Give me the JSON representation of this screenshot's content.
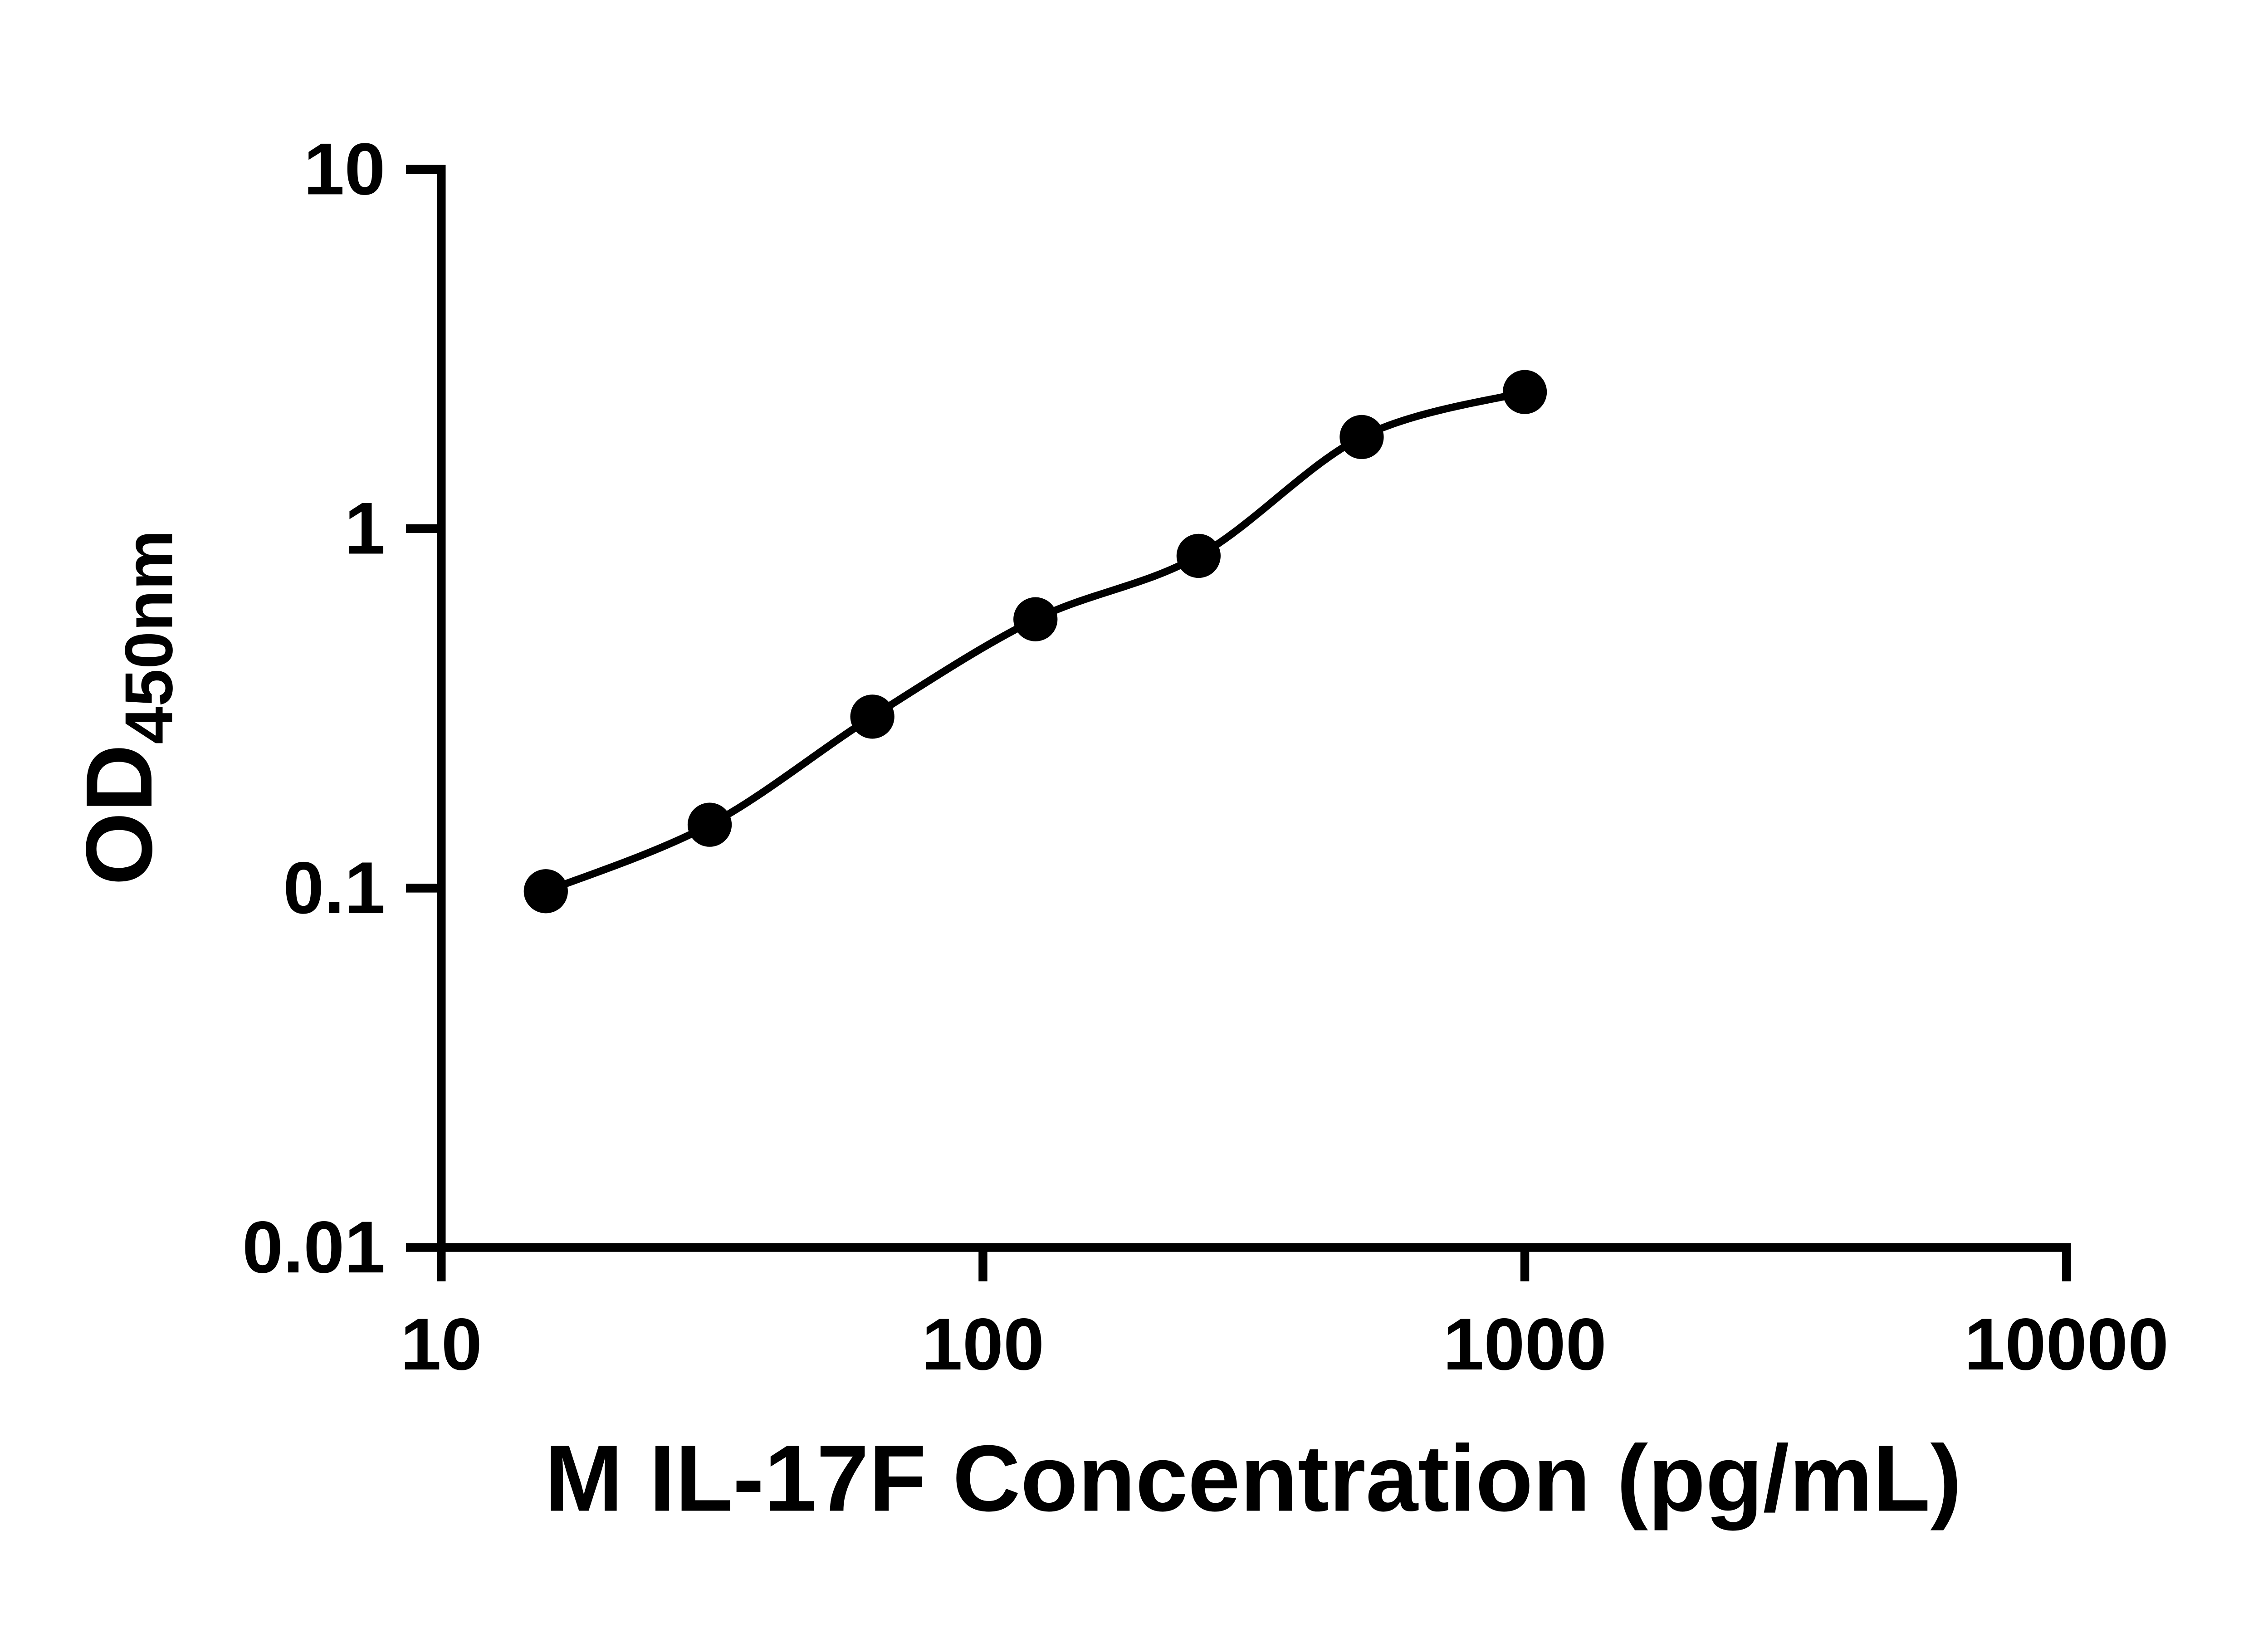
{
  "chart": {
    "background_color": "#ffffff",
    "axis_color": "#000000",
    "line_color": "#000000",
    "point_color": "#000000"
  },
  "chart_data": {
    "type": "scatter",
    "title": "",
    "xlabel": "M IL-17F Concentration (pg/mL)",
    "ylabel_main": "OD",
    "ylabel_sub": "450nm",
    "x_scale": "log",
    "y_scale": "log",
    "xlim": [
      10,
      10000
    ],
    "ylim": [
      0.01,
      10
    ],
    "x": [
      15.6,
      31.3,
      62.5,
      125,
      250,
      500,
      1000
    ],
    "y": [
      0.098,
      0.15,
      0.3,
      0.56,
      0.84,
      1.8,
      2.4
    ],
    "x_ticks": [
      10,
      100,
      1000,
      10000
    ],
    "x_tick_labels": [
      "10",
      "100",
      "1000",
      "10000"
    ],
    "y_ticks": [
      0.01,
      0.1,
      1,
      10
    ],
    "y_tick_labels": [
      "0.01",
      "0.1",
      "1",
      "10"
    ],
    "grid": false,
    "legend": "none",
    "curve_style": "smooth sigmoid fit through points"
  }
}
